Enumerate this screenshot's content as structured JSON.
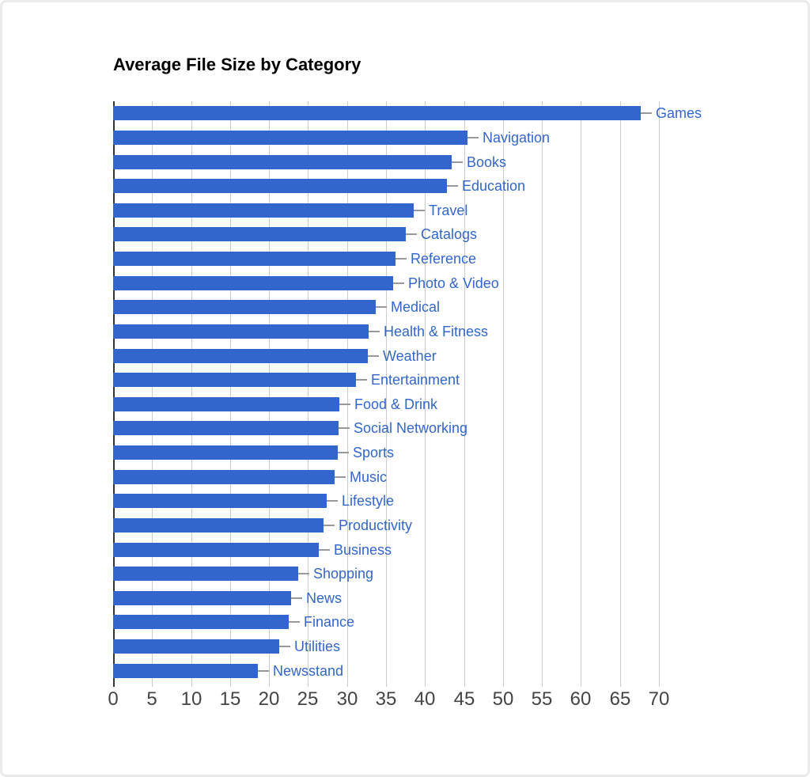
{
  "chart_data": {
    "type": "bar",
    "orientation": "horizontal",
    "title": "Average File Size by Category",
    "xlabel": "",
    "ylabel": "",
    "xlim": [
      0,
      70
    ],
    "xticks": [
      0,
      5,
      10,
      15,
      20,
      25,
      30,
      35,
      40,
      45,
      50,
      55,
      60,
      65,
      70
    ],
    "grid": true,
    "legend_position": "none",
    "categories": [
      "Games",
      "Navigation",
      "Books",
      "Education",
      "Travel",
      "Catalogs",
      "Reference",
      "Photo & Video",
      "Medical",
      "Health & Fitness",
      "Weather",
      "Entertainment",
      "Food & Drink",
      "Social Networking",
      "Sports",
      "Music",
      "Lifestyle",
      "Productivity",
      "Business",
      "Shopping",
      "News",
      "Finance",
      "Utilities",
      "Newsstand"
    ],
    "values": [
      67.7,
      45.4,
      43.4,
      42.8,
      38.6,
      37.5,
      36.2,
      35.9,
      33.7,
      32.8,
      32.7,
      31.1,
      29.0,
      28.9,
      28.8,
      28.4,
      27.4,
      27.0,
      26.4,
      23.7,
      22.8,
      22.5,
      21.3,
      18.6
    ]
  },
  "colors": {
    "bar": "#3366CC",
    "category_label": "#3366CC",
    "grid_line": "#cccccc",
    "zero_axis_line": "#333333",
    "tick_mark": "#cccccc",
    "tick_label": "#444444",
    "title": "#000000",
    "leader_line": "#999999",
    "frame_border": "#ebebeb",
    "background": "#ffffff"
  }
}
